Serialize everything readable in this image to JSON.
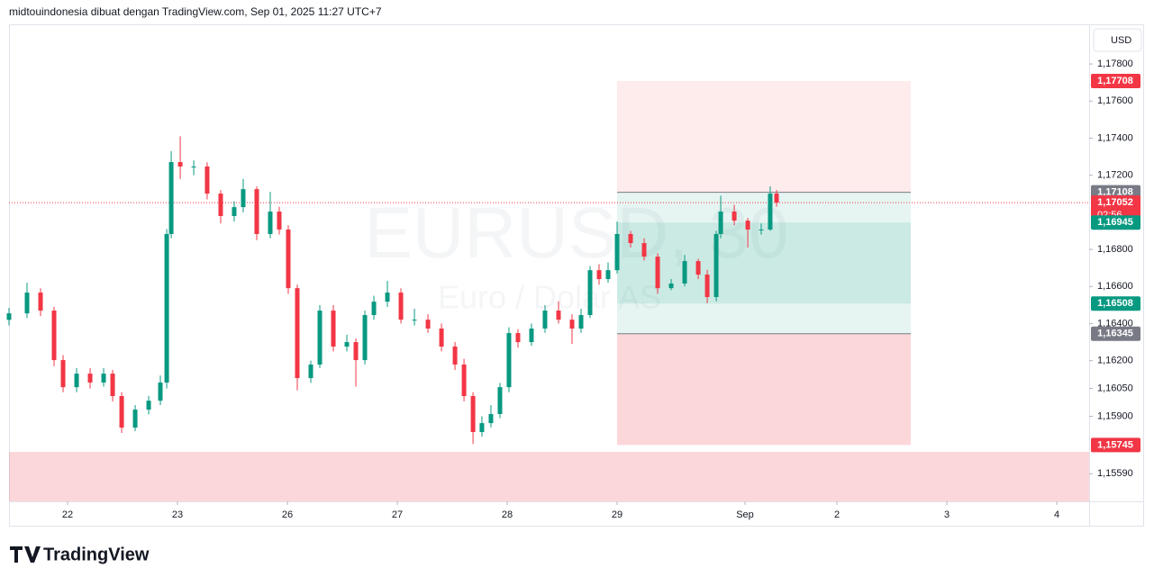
{
  "header": {
    "text": "midtouindonesia dibuat dengan TradingView.com, Sep 01, 2025 11:27 UTC+7"
  },
  "currency_button": "USD",
  "footer": {
    "logo_text": "TradingView"
  },
  "chart_data": {
    "type": "candlestick",
    "watermark": {
      "symbol": "EURUSD, 30",
      "description": "Euro / Dolar AS"
    },
    "up_color": "#089981",
    "down_color": "#f23645",
    "xlim": [
      -0.533,
      9.295
    ],
    "xticks": [
      {
        "value": 0,
        "label": "22"
      },
      {
        "value": 1,
        "label": "23"
      },
      {
        "value": 2,
        "label": "26"
      },
      {
        "value": 3,
        "label": "27"
      },
      {
        "value": 4,
        "label": "28"
      },
      {
        "value": 5,
        "label": "29"
      },
      {
        "value": 6.164,
        "label": "Sep"
      },
      {
        "value": 7,
        "label": "2"
      },
      {
        "value": 8,
        "label": "3"
      },
      {
        "value": 9,
        "label": "4"
      }
    ],
    "ylim": [
      1.15441,
      1.18014
    ],
    "yticks": [
      {
        "value": 1.178,
        "label": "1,17800"
      },
      {
        "value": 1.176,
        "label": "1,17600"
      },
      {
        "value": 1.174,
        "label": "1,17400"
      },
      {
        "value": 1.172,
        "label": "1,17200"
      },
      {
        "value": 1.168,
        "label": "1,16800"
      },
      {
        "value": 1.166,
        "label": "1,16600"
      },
      {
        "value": 1.164,
        "label": "1,16400"
      },
      {
        "value": 1.162,
        "label": "1,16200"
      },
      {
        "value": 1.1605,
        "label": "1,16050"
      },
      {
        "value": 1.159,
        "label": "1,15900"
      },
      {
        "value": 1.1559,
        "label": "1,15590"
      }
    ],
    "grid": false,
    "candles": {
      "x": [
        -0.533,
        -0.369,
        -0.246,
        -0.123,
        -0.041,
        0.082,
        0.205,
        0.328,
        0.41,
        0.492,
        0.615,
        0.738,
        0.844,
        0.902,
        0.943,
        1.025,
        1.148,
        1.27,
        1.393,
        1.516,
        1.598,
        1.721,
        1.844,
        1.926,
        2.008,
        2.09,
        2.213,
        2.295,
        2.418,
        2.541,
        2.623,
        2.705,
        2.787,
        2.91,
        3.033,
        3.156,
        3.279,
        3.402,
        3.525,
        3.607,
        3.689,
        3.77,
        3.852,
        3.934,
        4.016,
        4.098,
        4.221,
        4.344,
        4.467,
        4.59,
        4.672,
        4.754,
        4.836,
        4.918,
        5,
        5.123,
        5.246,
        5.369,
        5.492,
        5.615,
        5.738,
        5.82,
        5.902,
        5.943,
        6.066,
        6.189,
        6.311,
        6.393,
        6.451
      ],
      "open": [
        1.1642,
        1.16455,
        1.16567,
        1.1647,
        1.16203,
        1.16057,
        1.1613,
        1.16082,
        1.1613,
        1.16009,
        1.15839,
        1.15936,
        1.15984,
        1.16082,
        1.16883,
        1.17271,
        1.17247,
        1.17247,
        1.17101,
        1.1698,
        1.17028,
        1.17125,
        1.16883,
        1.17004,
        1.16907,
        1.16591,
        1.16106,
        1.16179,
        1.1647,
        1.16276,
        1.163,
        1.16203,
        1.16446,
        1.16518,
        1.16567,
        1.16421,
        1.16421,
        1.16373,
        1.16276,
        1.16179,
        1.16009,
        1.15815,
        1.15863,
        1.15912,
        1.16057,
        1.16349,
        1.163,
        1.16373,
        1.1647,
        1.16421,
        1.16373,
        1.16446,
        1.16688,
        1.1664,
        1.16688,
        1.16883,
        1.16834,
        1.16761,
        1.16591,
        1.16616,
        1.16737,
        1.16664,
        1.16543,
        1.16883,
        1.17004,
        1.16955,
        1.16907,
        1.16907,
        1.17101
      ],
      "high": [
        1.16485,
        1.1662,
        1.1659,
        1.1649,
        1.1623,
        1.1616,
        1.1616,
        1.1616,
        1.1615,
        1.1603,
        1.1596,
        1.1601,
        1.1612,
        1.1691,
        1.1733,
        1.1741,
        1.1728,
        1.1727,
        1.1712,
        1.1706,
        1.1718,
        1.1714,
        1.1711,
        1.1703,
        1.1693,
        1.1661,
        1.162,
        1.165,
        1.165,
        1.1634,
        1.1632,
        1.1647,
        1.1655,
        1.1663,
        1.1659,
        1.1648,
        1.1645,
        1.164,
        1.163,
        1.1621,
        1.1603,
        1.159,
        1.1596,
        1.1608,
        1.1638,
        1.1637,
        1.164,
        1.165,
        1.1652,
        1.1645,
        1.1648,
        1.1671,
        1.1672,
        1.1673,
        1.1695,
        1.169,
        1.1686,
        1.1678,
        1.1664,
        1.1677,
        1.1675,
        1.1669,
        1.169,
        1.1709,
        1.1704,
        1.1697,
        1.1694,
        1.1714,
        1.1712
      ],
      "low": [
        1.1639,
        1.1643,
        1.1644,
        1.1617,
        1.1603,
        1.1603,
        1.1605,
        1.1606,
        1.1598,
        1.1581,
        1.1582,
        1.1591,
        1.1596,
        1.1605,
        1.1686,
        1.1718,
        1.172,
        1.1707,
        1.1694,
        1.1695,
        1.17,
        1.1685,
        1.1686,
        1.1688,
        1.1656,
        1.1604,
        1.1608,
        1.1616,
        1.1625,
        1.1625,
        1.1606,
        1.1618,
        1.1642,
        1.1649,
        1.164,
        1.1639,
        1.1635,
        1.1625,
        1.1615,
        1.1598,
        1.1575,
        1.1579,
        1.1584,
        1.1589,
        1.1603,
        1.1627,
        1.1628,
        1.1635,
        1.164,
        1.1629,
        1.1635,
        1.1643,
        1.1661,
        1.1662,
        1.1667,
        1.1681,
        1.1674,
        1.1656,
        1.1658,
        1.166,
        1.1664,
        1.1651,
        1.1652,
        1.1686,
        1.1693,
        1.1681,
        1.1688,
        1.169,
        1.1703
      ],
      "close": [
        1.16455,
        1.16567,
        1.1647,
        1.16203,
        1.16057,
        1.1613,
        1.16082,
        1.1613,
        1.16009,
        1.15839,
        1.15936,
        1.15984,
        1.16082,
        1.16883,
        1.17271,
        1.17247,
        1.17247,
        1.17101,
        1.1698,
        1.17028,
        1.17125,
        1.16883,
        1.17004,
        1.16907,
        1.16591,
        1.16106,
        1.16179,
        1.1647,
        1.16276,
        1.163,
        1.16203,
        1.16446,
        1.16518,
        1.16567,
        1.16421,
        1.16421,
        1.16373,
        1.16276,
        1.16179,
        1.16009,
        1.15815,
        1.15863,
        1.15912,
        1.16057,
        1.16349,
        1.163,
        1.16373,
        1.1647,
        1.16421,
        1.16373,
        1.16446,
        1.16688,
        1.1664,
        1.16688,
        1.16883,
        1.16834,
        1.16761,
        1.16591,
        1.16616,
        1.16737,
        1.16664,
        1.16543,
        1.16883,
        1.17004,
        1.16955,
        1.16907,
        1.16907,
        1.17101,
        1.17052
      ]
    },
    "price_labels": [
      {
        "value": 1.17708,
        "label": "1,17708",
        "color": "#f23645"
      },
      {
        "value": 1.17108,
        "label": "1,17108",
        "color": "#787b86"
      },
      {
        "value": 1.17052,
        "label": "1,17052",
        "color": "#f23645",
        "countdown": "02:56"
      },
      {
        "value": 1.16945,
        "label": "1,16945",
        "color": "#089981"
      },
      {
        "value": 1.16508,
        "label": "1,16508",
        "color": "#089981"
      },
      {
        "value": 1.16345,
        "label": "1,16345",
        "color": "#787b86"
      },
      {
        "value": 1.15745,
        "label": "1,15745",
        "color": "#f23645"
      }
    ],
    "position_tool": {
      "x_start": 5,
      "x_end": 7.672
    }
  }
}
